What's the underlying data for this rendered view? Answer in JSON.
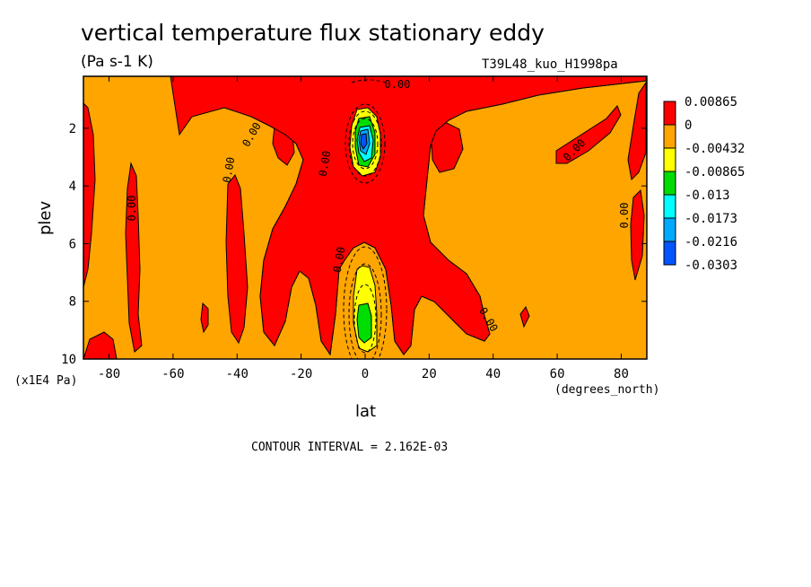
{
  "chart_data": {
    "type": "heatmap",
    "title": "vertical temperature flux stationary eddy",
    "units": "(Pa s-1 K)",
    "dataset_label": "T39L48_kuo_H1998pa",
    "xlabel": "lat",
    "x_units": "(degrees_north)",
    "ylabel": "plev",
    "y_units": "(x1E4 Pa)",
    "xlim": [
      -88,
      88
    ],
    "ylim": [
      10,
      0.2
    ],
    "x_ticks": [
      -80,
      -60,
      -40,
      -20,
      0,
      20,
      40,
      60,
      80
    ],
    "y_ticks": [
      2,
      4,
      6,
      8,
      10
    ],
    "contour_interval_text": "CONTOUR INTERVAL = 2.162E-03",
    "contour_line_label": "0.00",
    "colorbar": {
      "levels": [
        "0.00865",
        "0",
        "-0.00432",
        "-0.00865",
        "-0.013",
        "-0.0173",
        "-0.0216",
        "-0.0303"
      ],
      "colors": [
        "#ff0000",
        "#ffa500",
        "#ffff00",
        "#00dd00",
        "#00ffff",
        "#00aaff",
        "#0055ff"
      ]
    },
    "color_fill": {
      "background_band": "#ffa500",
      "positive": "#ff0000",
      "negative_1": "#ffff00",
      "negative_2": "#00dd00",
      "negative_3": "#00ffff",
      "negative_4": "#00aaff",
      "negative_5": "#0055ff"
    }
  }
}
